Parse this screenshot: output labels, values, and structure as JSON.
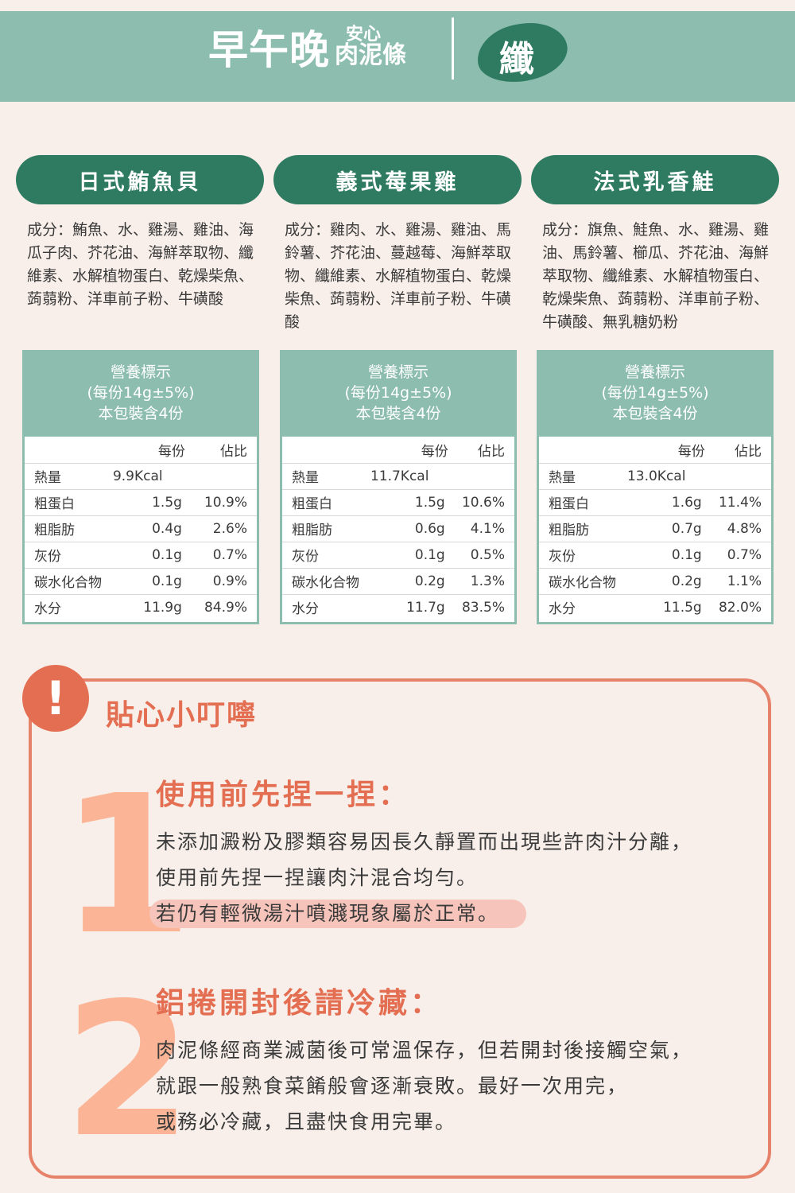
{
  "header": {
    "brand_main": "早午晚",
    "brand_sub_top": "安心",
    "brand_sub_bottom": "肉泥條",
    "badge": "纖"
  },
  "flavors": [
    {
      "name": "日式鮪魚貝",
      "ingredients": "成分：鮪魚、水、雞湯、雞油、海瓜子肉、芥花油、海鮮萃取物、纖維素、水解植物蛋白、乾燥柴魚、蒟蒻粉、洋車前子粉、牛磺酸",
      "nutrition": {
        "title": "營養標示",
        "serving": "(每份14g±5%)",
        "count": "本包裝含4份",
        "col_per": "每份",
        "col_pct": "佔比",
        "rows": [
          {
            "label": "熱量",
            "value": "9.9Kcal",
            "pct": ""
          },
          {
            "label": "粗蛋白",
            "value": "1.5g",
            "pct": "10.9%"
          },
          {
            "label": "粗脂肪",
            "value": "0.4g",
            "pct": "2.6%"
          },
          {
            "label": "灰份",
            "value": "0.1g",
            "pct": "0.7%"
          },
          {
            "label": "碳水化合物",
            "value": "0.1g",
            "pct": "0.9%"
          },
          {
            "label": "水分",
            "value": "11.9g",
            "pct": "84.9%"
          }
        ]
      }
    },
    {
      "name": "義式莓果雞",
      "ingredients": "成分：雞肉、水、雞湯、雞油、馬鈴薯、芥花油、蔓越莓、海鮮萃取物、纖維素、水解植物蛋白、乾燥柴魚、蒟蒻粉、洋車前子粉、牛磺酸",
      "nutrition": {
        "title": "營養標示",
        "serving": "(每份14g±5%)",
        "count": "本包裝含4份",
        "col_per": "每份",
        "col_pct": "佔比",
        "rows": [
          {
            "label": "熱量",
            "value": "11.7Kcal",
            "pct": ""
          },
          {
            "label": "粗蛋白",
            "value": "1.5g",
            "pct": "10.6%"
          },
          {
            "label": "粗脂肪",
            "value": "0.6g",
            "pct": "4.1%"
          },
          {
            "label": "灰份",
            "value": "0.1g",
            "pct": "0.5%"
          },
          {
            "label": "碳水化合物",
            "value": "0.2g",
            "pct": "1.3%"
          },
          {
            "label": "水分",
            "value": "11.7g",
            "pct": "83.5%"
          }
        ]
      }
    },
    {
      "name": "法式乳香鮭",
      "ingredients": "成分：旗魚、鮭魚、水、雞湯、雞油、馬鈴薯、櫛瓜、芥花油、海鮮萃取物、纖維素、水解植物蛋白、乾燥柴魚、蒟蒻粉、洋車前子粉、牛磺酸、無乳糖奶粉",
      "nutrition": {
        "title": "營養標示",
        "serving": "(每份14g±5%)",
        "count": "本包裝含4份",
        "col_per": "每份",
        "col_pct": "佔比",
        "rows": [
          {
            "label": "熱量",
            "value": "13.0Kcal",
            "pct": ""
          },
          {
            "label": "粗蛋白",
            "value": "1.6g",
            "pct": "11.4%"
          },
          {
            "label": "粗脂肪",
            "value": "0.7g",
            "pct": "4.8%"
          },
          {
            "label": "灰份",
            "value": "0.1g",
            "pct": "0.7%"
          },
          {
            "label": "碳水化合物",
            "value": "0.2g",
            "pct": "1.1%"
          },
          {
            "label": "水分",
            "value": "11.5g",
            "pct": "82.0%"
          }
        ]
      }
    }
  ],
  "tips": {
    "alert_symbol": "!",
    "title": "貼心小叮嚀",
    "items": [
      {
        "number": "1",
        "heading": "使用前先捏一捏：",
        "line1": "未添加澱粉及膠類容易因長久靜置而出現些許肉汁分離，",
        "line2": "使用前先捏一捏讓肉汁混合均勻。",
        "line3": "若仍有輕微湯汁噴濺現象屬於正常。"
      },
      {
        "number": "2",
        "heading": "鋁捲開封後請冷藏：",
        "line1": "肉泥條經商業滅菌後可常溫保存，但若開封後接觸空氣，",
        "line2": "就跟一般熟食菜餚般會逐漸衰敗。最好一次用完，",
        "line3": "或務必冷藏，且盡快食用完畢。"
      }
    ]
  }
}
